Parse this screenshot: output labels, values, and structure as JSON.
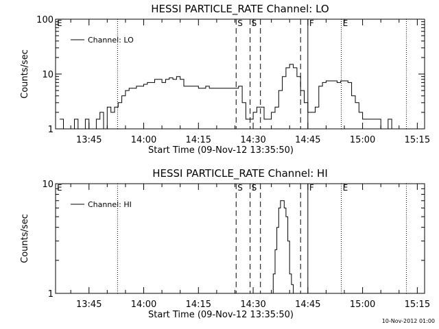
{
  "timestamp": "10-Nov-2012 01:00",
  "chart_data": [
    {
      "type": "line",
      "title": "HESSI PARTICLE_RATE Channel: LO",
      "xlabel": "Start Time (09-Nov-12 13:35:50)",
      "ylabel": "Counts/sec",
      "yscale": "log",
      "ylim": [
        1,
        100
      ],
      "y_ticks": [
        "1",
        "10",
        "100"
      ],
      "xlim": [
        "13:35:50",
        "15:17:00"
      ],
      "x_ticks": [
        "13:45",
        "14:00",
        "14:15",
        "14:30",
        "14:45",
        "15:00",
        "15:15"
      ],
      "legend": "Channel: LO",
      "markers": [
        {
          "label": "E",
          "time": "13:35:50",
          "style": "dotted"
        },
        {
          "label": "",
          "time": "13:52:50",
          "style": "dotted"
        },
        {
          "label": "S",
          "time": "14:25:20",
          "style": "dashed"
        },
        {
          "label": "S",
          "time": "14:29:10",
          "style": "dashed"
        },
        {
          "label": "",
          "time": "14:32:00",
          "style": "dashed"
        },
        {
          "label": "",
          "time": "14:43:00",
          "style": "dashed"
        },
        {
          "label": "F",
          "time": "14:45:00",
          "style": "solid"
        },
        {
          "label": "E",
          "time": "14:54:10",
          "style": "dotted"
        },
        {
          "label": "",
          "time": "15:12:00",
          "style": "dotted"
        }
      ],
      "series": [
        {
          "x": [
            "13:37",
            "13:38",
            "13:39",
            "13:40",
            "13:41",
            "13:42",
            "13:43",
            "13:44",
            "13:45",
            "13:46",
            "13:47",
            "13:48",
            "13:49",
            "13:50",
            "13:51",
            "13:52",
            "13:53",
            "13:54",
            "13:55",
            "13:56",
            "13:57",
            "13:58",
            "13:59",
            "14:00",
            "14:01",
            "14:02",
            "14:03",
            "14:04",
            "14:05",
            "14:06",
            "14:07",
            "14:08",
            "14:09",
            "14:10",
            "14:11",
            "14:12",
            "14:13",
            "14:14",
            "14:15",
            "14:16",
            "14:17",
            "14:18",
            "14:19",
            "14:20",
            "14:21",
            "14:22",
            "14:23",
            "14:24",
            "14:25",
            "14:26",
            "14:27",
            "14:28",
            "14:29",
            "14:30",
            "14:31",
            "14:32",
            "14:33",
            "14:34",
            "14:35",
            "14:36",
            "14:37",
            "14:38",
            "14:39",
            "14:40",
            "14:41",
            "14:42",
            "14:43",
            "14:44",
            "14:45",
            "14:46",
            "14:47",
            "14:48",
            "14:49",
            "14:50",
            "14:51",
            "14:52",
            "14:53",
            "14:54",
            "14:55",
            "14:56",
            "14:57",
            "14:58",
            "14:59",
            "15:00",
            "15:01",
            "15:02",
            "15:03",
            "15:04",
            "15:05",
            "15:06",
            "15:07",
            "15:08",
            "15:09",
            "15:10",
            "15:11"
          ],
          "values": [
            1.5,
            1,
            1,
            1,
            1.5,
            1,
            1,
            1.5,
            1,
            1,
            1.5,
            2,
            1,
            2.5,
            2,
            2.5,
            3,
            4,
            5,
            5.5,
            5.5,
            6,
            6,
            6.5,
            7,
            7,
            8,
            8,
            7,
            8,
            8.5,
            8,
            9,
            8,
            6,
            6,
            6,
            6,
            5.5,
            5.5,
            6,
            5.5,
            5.5,
            5.5,
            5.5,
            5.5,
            5.5,
            5.5,
            5.5,
            6,
            3,
            1.5,
            1.5,
            2,
            2.5,
            2.5,
            1.5,
            1.5,
            2,
            2.5,
            5,
            9,
            13,
            15,
            13,
            9,
            5,
            3,
            2,
            2,
            2.5,
            6,
            7,
            7.5,
            7.5,
            7.5,
            7,
            7.5,
            7.5,
            7,
            4,
            3,
            2,
            1.5,
            1.5,
            1.5,
            1.5,
            1.5,
            1,
            1,
            1.5,
            1,
            1,
            1,
            1
          ]
        }
      ]
    },
    {
      "type": "line",
      "title": "HESSI PARTICLE_RATE Channel: HI",
      "xlabel": "Start Time (09-Nov-12 13:35:50)",
      "ylabel": "Counts/sec",
      "yscale": "log",
      "ylim": [
        1,
        10
      ],
      "y_ticks": [
        "1",
        "10"
      ],
      "xlim": [
        "13:35:50",
        "15:17:00"
      ],
      "x_ticks": [
        "13:45",
        "14:00",
        "14:15",
        "14:30",
        "14:45",
        "15:00",
        "15:15"
      ],
      "legend": "Channel: HI",
      "markers": [
        {
          "label": "E",
          "time": "13:35:50",
          "style": "dotted"
        },
        {
          "label": "",
          "time": "13:52:50",
          "style": "dotted"
        },
        {
          "label": "S",
          "time": "14:25:20",
          "style": "dashed"
        },
        {
          "label": "S",
          "time": "14:29:10",
          "style": "dashed"
        },
        {
          "label": "",
          "time": "14:32:00",
          "style": "dashed"
        },
        {
          "label": "",
          "time": "14:43:00",
          "style": "dashed"
        },
        {
          "label": "F",
          "time": "14:45:00",
          "style": "solid"
        },
        {
          "label": "E",
          "time": "14:54:10",
          "style": "dotted"
        },
        {
          "label": "",
          "time": "15:12:00",
          "style": "dotted"
        }
      ],
      "series": [
        {
          "x": [
            "14:35:00",
            "14:35:30",
            "14:36:00",
            "14:36:30",
            "14:37:00",
            "14:37:30",
            "14:38:00",
            "14:38:30",
            "14:39:00",
            "14:39:30",
            "14:40:00",
            "14:40:30",
            "14:41:00"
          ],
          "values": [
            1,
            1.5,
            2.5,
            4,
            6,
            7,
            7,
            6,
            5,
            3,
            1.5,
            1.2,
            1
          ]
        }
      ]
    }
  ]
}
